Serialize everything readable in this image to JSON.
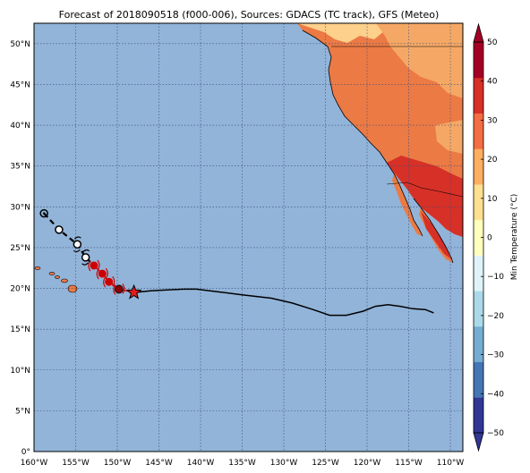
{
  "figure": {
    "title": "Forecast of 2018090518 (f000-006), Sources: GDACS (TC track), GFS (Meteo)"
  },
  "map": {
    "lon_range": [
      -160,
      -108.5
    ],
    "lat_range": [
      0,
      52.5
    ],
    "lon_ticks": [
      -160,
      -155,
      -150,
      -145,
      -140,
      -135,
      -130,
      -125,
      -120,
      -115,
      -110
    ],
    "lat_ticks": [
      0,
      5,
      10,
      15,
      20,
      25,
      30,
      35,
      40,
      45,
      50
    ],
    "lon_tick_labels": [
      "160°W",
      "155°W",
      "150°W",
      "145°W",
      "140°W",
      "135°W",
      "130°W",
      "125°W",
      "120°W",
      "115°W",
      "110°W"
    ],
    "lat_tick_labels": [
      "0°",
      "5°N",
      "10°N",
      "15°N",
      "20°N",
      "25°N",
      "30°N",
      "35°N",
      "40°N",
      "45°N",
      "50°N"
    ],
    "grid": "on",
    "colors": {
      "ocean": "#92b4d8",
      "grid": "#3a4a7a",
      "land_hot": "#ec7a45",
      "land_warm": "#f5a865",
      "land_pale": "#fdd08b",
      "land_red": "#d73027",
      "track_line": "#000000",
      "forecast_points": "#cc0000",
      "star": "#e41a1c"
    }
  },
  "chart_data": {
    "type": "map",
    "colorbar": {
      "label": "Min Temperature (°C)",
      "min": -50,
      "max": 50,
      "ticks": [
        -50,
        -40,
        -30,
        -20,
        -10,
        0,
        10,
        20,
        30,
        40,
        50
      ],
      "tick_labels": [
        "−50",
        "−40",
        "−30",
        "−20",
        "−10",
        "0",
        "10",
        "20",
        "30",
        "40",
        "50"
      ],
      "colors": [
        "#313695",
        "#4575b4",
        "#74add1",
        "#abd9e9",
        "#e0f3f8",
        "#ffffbf",
        "#fee090",
        "#fdae61",
        "#f46d43",
        "#d73027",
        "#a50026"
      ]
    },
    "storm_current_position": {
      "lon": -148,
      "lat": 19.5
    },
    "forecast_track_red": [
      {
        "lon": -152.8,
        "lat": 22.8
      },
      {
        "lon": -151.8,
        "lat": 21.8
      },
      {
        "lon": -151.0,
        "lat": 20.8
      },
      {
        "lon": -149.8,
        "lat": 19.9
      }
    ],
    "forecast_track_black": [
      {
        "lon": -158.8,
        "lat": 29.2
      },
      {
        "lon": -157.0,
        "lat": 27.2
      },
      {
        "lon": -154.8,
        "lat": 25.4
      },
      {
        "lon": -153.8,
        "lat": 23.8
      }
    ],
    "past_track": [
      [
        -148,
        19.5
      ],
      [
        -146,
        19.7
      ],
      [
        -144,
        19.8
      ],
      [
        -142,
        19.9
      ],
      [
        -140.5,
        19.9
      ],
      [
        -138,
        19.6
      ],
      [
        -135,
        19.2
      ],
      [
        -131.5,
        18.8
      ],
      [
        -129,
        18.2
      ],
      [
        -126.5,
        17.4
      ],
      [
        -124.5,
        16.7
      ],
      [
        -122.5,
        16.7
      ],
      [
        -120.5,
        17.2
      ],
      [
        -119,
        17.8
      ],
      [
        -117.5,
        18.0
      ],
      [
        -116,
        17.8
      ],
      [
        -114.5,
        17.5
      ],
      [
        -113,
        17.4
      ],
      [
        -112,
        17.0
      ]
    ]
  }
}
